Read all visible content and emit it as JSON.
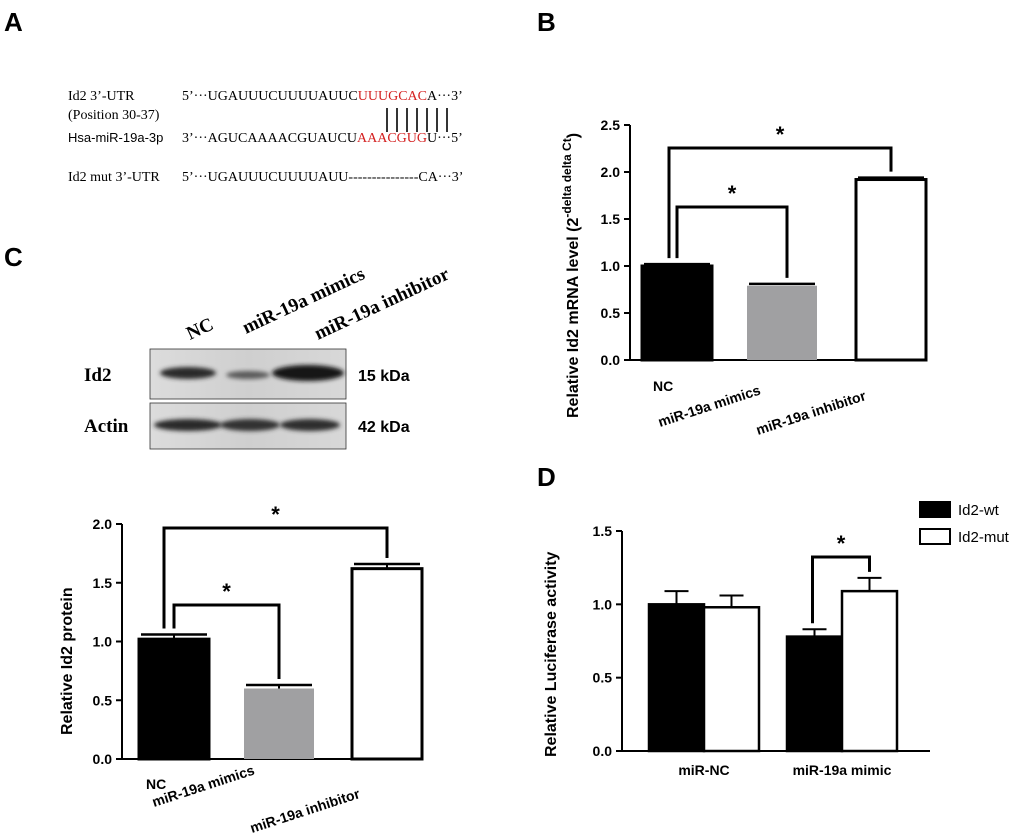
{
  "panel_letters": {
    "a": "A",
    "b": "B",
    "c": "C",
    "d": "D"
  },
  "sequence": {
    "row1": {
      "label": "Id2 3’-UTR",
      "sublabel": "(Position 30-37)",
      "prefix": "5’···UGAUUUCUUUUAUUC",
      "highlight": "UUUGCAC",
      "suffix": "A···3’"
    },
    "row2": {
      "label": "Hsa-miR-19a-3p",
      "prefix": "3’···AGUCAAAACGUAUCU",
      "highlight": "AAACGUG",
      "suffix": "U···5’"
    },
    "row3": {
      "label": "Id2 mut 3’-UTR",
      "text": "5’···UGAUUUCUUUUAUU---------------CA···3’"
    }
  },
  "blot": {
    "lanes": [
      "NC",
      "miR-19a mimics",
      "miR-19a inhibitor"
    ],
    "rows": [
      {
        "label": "Id2",
        "kda": "15 kDa"
      },
      {
        "label": "Actin",
        "kda": "42 kDa"
      }
    ]
  },
  "colors": {
    "black": "#000000",
    "gray": "#a0a0a2",
    "white": "#ffffff",
    "red": "#d42020"
  },
  "chart_data": [
    {
      "panel": "B",
      "type": "bar",
      "categories": [
        "NC",
        "miR-19a mimics",
        "miR-19a inhibitor"
      ],
      "values": [
        1.0,
        0.79,
        1.92
      ],
      "errors": [
        0.02,
        0.02,
        0.02
      ],
      "fills": [
        "black",
        "gray",
        "white"
      ],
      "ylabel_main": "Relative Id2 mRNA level (2",
      "ylabel_sup": "-delta delta Ct",
      "ylabel_end": ")",
      "ylim": [
        0,
        2.5
      ],
      "yticks": [
        "0.0",
        "0.5",
        "1.0",
        "1.5",
        "2.0",
        "2.5"
      ],
      "significance": [
        "*",
        "*"
      ]
    },
    {
      "panel": "C",
      "type": "bar",
      "categories": [
        "NC",
        "miR-19a mimics",
        "miR-19a inhibitor"
      ],
      "values": [
        1.02,
        0.6,
        1.62
      ],
      "errors": [
        0.04,
        0.03,
        0.04
      ],
      "fills": [
        "black",
        "gray",
        "white"
      ],
      "ylabel": "Relative Id2 protein",
      "ylim": [
        0,
        2.0
      ],
      "yticks": [
        "0.0",
        "0.5",
        "1.0",
        "1.5",
        "2.0"
      ],
      "significance": [
        "*",
        "*"
      ]
    },
    {
      "panel": "D",
      "type": "bar",
      "categories": [
        "miR-NC",
        "miR-19a mimic"
      ],
      "series": [
        {
          "name": "Id2-wt",
          "values": [
            1.0,
            0.78
          ],
          "errors": [
            0.09,
            0.05
          ],
          "fill": "black"
        },
        {
          "name": "Id2-mut",
          "values": [
            0.98,
            1.09
          ],
          "errors": [
            0.08,
            0.09
          ],
          "fill": "white"
        }
      ],
      "ylabel": "Relative Luciferase activity",
      "ylim": [
        0,
        1.5
      ],
      "yticks": [
        "0.0",
        "0.5",
        "1.0",
        "1.5"
      ],
      "legend_position": "top-right",
      "significance": [
        "*"
      ]
    }
  ]
}
